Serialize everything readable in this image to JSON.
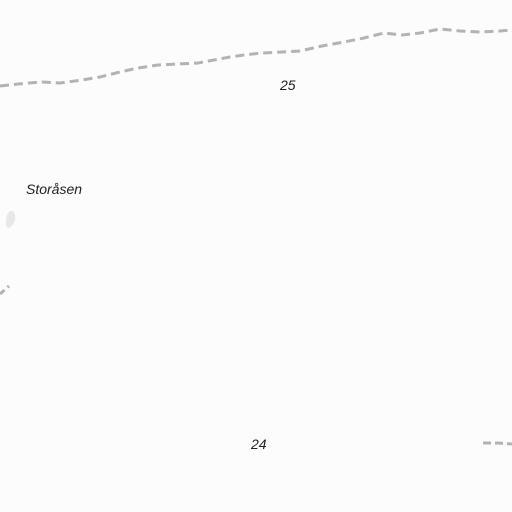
{
  "map": {
    "background_color": "#fcfcfc",
    "boundary_color": "#b0b0b0",
    "feature_color": "#e6e6e6",
    "labels": {
      "place_name": "Storåsen",
      "area_number_top": "25",
      "area_number_bottom": "24"
    }
  }
}
